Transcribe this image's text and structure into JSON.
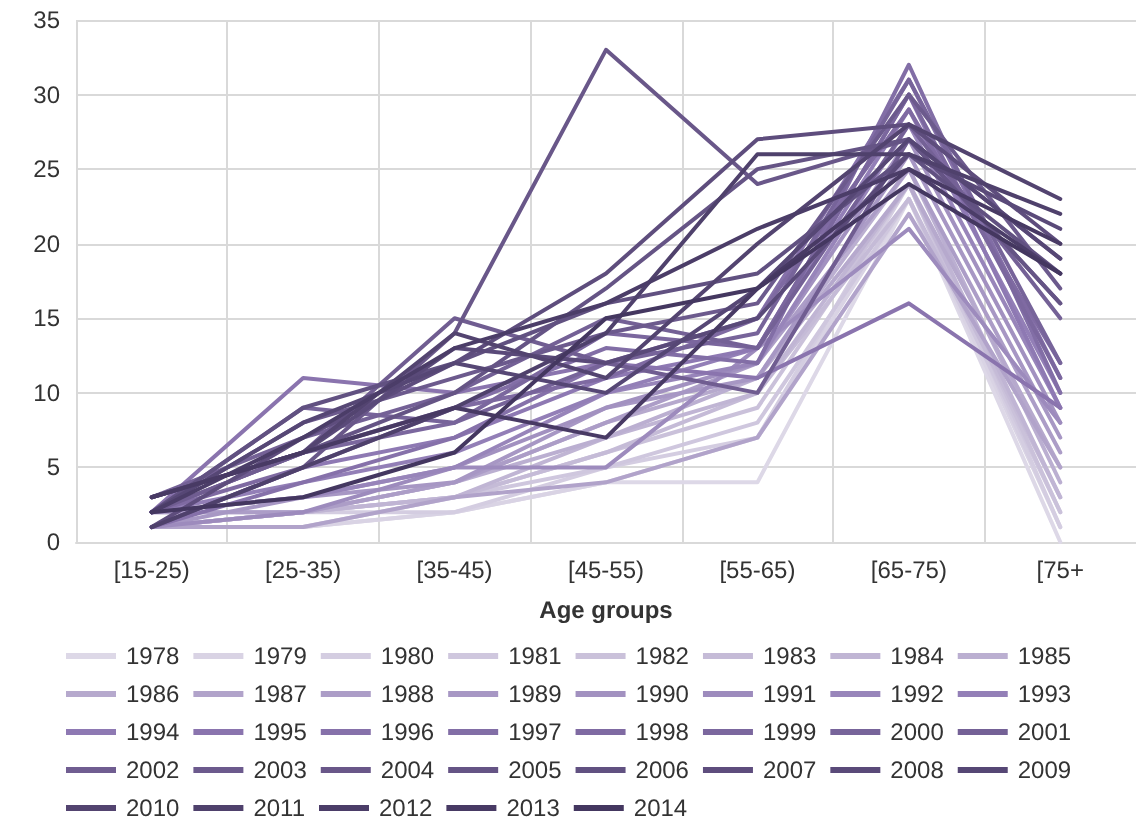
{
  "chart_data": {
    "type": "line",
    "xlabel": "Age groups",
    "categories": [
      "[15-25)",
      "[25-35)",
      "[35-45)",
      "[45-55)",
      "[55-65)",
      "[65-75)",
      "[75+"
    ],
    "ylim": [
      0,
      35
    ],
    "yticks": [
      0,
      5,
      10,
      15,
      20,
      25,
      30,
      35
    ],
    "grid": true,
    "legend": "bottom",
    "marker": "none",
    "line_style": "solid",
    "series": [
      {
        "name": "1978",
        "color": "#ddd8e7",
        "values": [
          1,
          1,
          2,
          4,
          4,
          23,
          0
        ]
      },
      {
        "name": "1979",
        "color": "#d9d3e4",
        "values": [
          1,
          1,
          2,
          4,
          7,
          23,
          1
        ]
      },
      {
        "name": "1980",
        "color": "#d4cde1",
        "values": [
          1,
          2,
          2,
          5,
          7,
          24,
          1
        ]
      },
      {
        "name": "1981",
        "color": "#cfc7de",
        "values": [
          1,
          1,
          3,
          5,
          8,
          23,
          2
        ]
      },
      {
        "name": "1982",
        "color": "#cac1da",
        "values": [
          1,
          2,
          3,
          6,
          9,
          24,
          2
        ]
      },
      {
        "name": "1983",
        "color": "#c5bbd7",
        "values": [
          1,
          2,
          3,
          6,
          10,
          23,
          3
        ]
      },
      {
        "name": "1984",
        "color": "#c0b5d4",
        "values": [
          1,
          2,
          3,
          7,
          10,
          24,
          3
        ]
      },
      {
        "name": "1985",
        "color": "#bbafd1",
        "values": [
          2,
          2,
          4,
          7,
          11,
          25,
          4
        ]
      },
      {
        "name": "1986",
        "color": "#b6a9cd",
        "values": [
          1,
          2,
          4,
          8,
          11,
          24,
          5
        ]
      },
      {
        "name": "1987",
        "color": "#b1a3ca",
        "values": [
          1,
          1,
          3,
          4,
          7,
          22,
          5
        ]
      },
      {
        "name": "1988",
        "color": "#ac9dc7",
        "values": [
          2,
          2,
          4,
          8,
          12,
          25,
          6
        ]
      },
      {
        "name": "1989",
        "color": "#a797c4",
        "values": [
          1,
          3,
          4,
          9,
          11,
          26,
          7
        ]
      },
      {
        "name": "1990",
        "color": "#a291c0",
        "values": [
          2,
          3,
          5,
          9,
          12,
          27,
          8
        ]
      },
      {
        "name": "1991",
        "color": "#9d8bbd",
        "values": [
          1,
          2,
          5,
          5,
          13,
          21,
          8
        ]
      },
      {
        "name": "1992",
        "color": "#9885ba",
        "values": [
          2,
          3,
          5,
          10,
          12,
          28,
          9
        ]
      },
      {
        "name": "1993",
        "color": "#937fb7",
        "values": [
          2,
          4,
          6,
          10,
          13,
          29,
          10
        ]
      },
      {
        "name": "1994",
        "color": "#8e79b3",
        "values": [
          1,
          5,
          7,
          11,
          13,
          30,
          9
        ]
      },
      {
        "name": "1995",
        "color": "#8a74ae",
        "values": [
          2,
          11,
          10,
          12,
          11,
          16,
          9
        ]
      },
      {
        "name": "1996",
        "color": "#8671aa",
        "values": [
          1,
          4,
          7,
          12,
          15,
          31,
          11
        ]
      },
      {
        "name": "1997",
        "color": "#826ea6",
        "values": [
          2,
          6,
          9,
          13,
          12,
          32,
          10
        ]
      },
      {
        "name": "1998",
        "color": "#7f6aa2",
        "values": [
          2,
          5,
          9,
          11,
          15,
          29,
          12
        ]
      },
      {
        "name": "1999",
        "color": "#7b679e",
        "values": [
          2,
          6,
          8,
          14,
          13,
          30,
          11
        ]
      },
      {
        "name": "2000",
        "color": "#77649a",
        "values": [
          2,
          9,
          8,
          12,
          14,
          31,
          12
        ]
      },
      {
        "name": "2001",
        "color": "#746196",
        "values": [
          3,
          7,
          10,
          15,
          13,
          28,
          15
        ]
      },
      {
        "name": "2002",
        "color": "#705d91",
        "values": [
          2,
          6,
          15,
          12,
          10,
          27,
          16
        ]
      },
      {
        "name": "2003",
        "color": "#6c5a8d",
        "values": [
          2,
          8,
          11,
          14,
          16,
          30,
          17
        ]
      },
      {
        "name": "2004",
        "color": "#695789",
        "values": [
          1,
          5,
          14,
          33,
          24,
          27,
          19
        ]
      },
      {
        "name": "2005",
        "color": "#655485",
        "values": [
          3,
          6,
          10,
          17,
          25,
          27,
          16
        ]
      },
      {
        "name": "2006",
        "color": "#615181",
        "values": [
          2,
          9,
          12,
          16,
          18,
          26,
          18
        ]
      },
      {
        "name": "2007",
        "color": "#5e4d7d",
        "values": [
          1,
          7,
          12,
          18,
          27,
          28,
          20
        ]
      },
      {
        "name": "2008",
        "color": "#5a4a79",
        "values": [
          3,
          6,
          13,
          12,
          15,
          26,
          21
        ]
      },
      {
        "name": "2009",
        "color": "#564775",
        "values": [
          2,
          8,
          12,
          10,
          17,
          27,
          19
        ]
      },
      {
        "name": "2010",
        "color": "#534470",
        "values": [
          3,
          6,
          14,
          11,
          20,
          28,
          23
        ]
      },
      {
        "name": "2011",
        "color": "#4f416c",
        "values": [
          1,
          5,
          9,
          14,
          26,
          26,
          22
        ]
      },
      {
        "name": "2012",
        "color": "#4b3d68",
        "values": [
          2,
          7,
          13,
          16,
          21,
          25,
          18
        ]
      },
      {
        "name": "2013",
        "color": "#483a64",
        "values": [
          3,
          6,
          9,
          7,
          17,
          25,
          20
        ]
      },
      {
        "name": "2014",
        "color": "#443760",
        "values": [
          2,
          3,
          6,
          15,
          17,
          24,
          18
        ]
      }
    ]
  }
}
